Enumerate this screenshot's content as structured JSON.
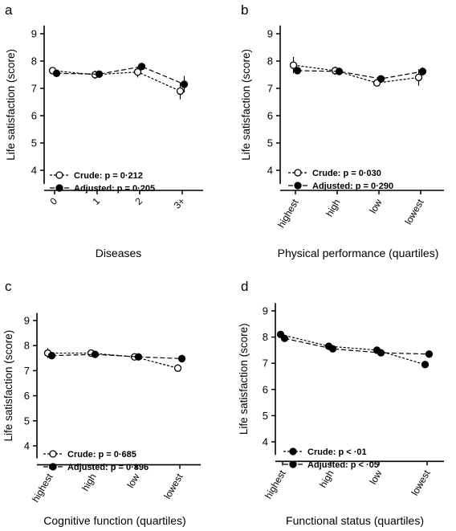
{
  "chart_data": [
    {
      "panel": "a",
      "type": "line",
      "xlabel": "Diseases",
      "ylabel": "Life satisfaction (score)",
      "categories": [
        "0",
        "1",
        "2",
        "3+"
      ],
      "ylim": [
        3.5,
        9.3
      ],
      "yticks": [
        "4",
        "5",
        "6",
        "7",
        "8",
        "9"
      ],
      "series": [
        {
          "name": "Crude",
          "p_value": "p = 0·212",
          "marker": "open-circle",
          "line": "dashed",
          "values": [
            7.65,
            7.5,
            7.6,
            6.9
          ],
          "err": [
            0.12,
            0.15,
            0.2,
            0.3
          ]
        },
        {
          "name": "Adjusted",
          "p_value": "p = 0·205",
          "marker": "filled-circle",
          "line": "dashed",
          "values": [
            7.55,
            7.52,
            7.8,
            7.15
          ],
          "err": [
            0.08,
            0.08,
            0.12,
            0.3
          ]
        }
      ]
    },
    {
      "panel": "b",
      "type": "line",
      "xlabel": "Physical performance (quartiles)",
      "ylabel": "Life satisfaction (score)",
      "categories": [
        "highest",
        "high",
        "low",
        "lowest"
      ],
      "ylim": [
        3.5,
        9.3
      ],
      "yticks": [
        "4",
        "5",
        "6",
        "7",
        "8",
        "9"
      ],
      "series": [
        {
          "name": "Crude",
          "p_value": "p = 0·030",
          "marker": "open-circle",
          "line": "dashed",
          "values": [
            7.85,
            7.65,
            7.2,
            7.4
          ],
          "err": [
            0.3,
            0.15,
            0.12,
            0.3
          ]
        },
        {
          "name": "Adjusted",
          "p_value": "p = 0·290",
          "marker": "filled-circle",
          "line": "dashed",
          "values": [
            7.65,
            7.62,
            7.35,
            7.62
          ],
          "err": [
            0.12,
            0.12,
            0.1,
            0.15
          ]
        }
      ]
    },
    {
      "panel": "c",
      "type": "line",
      "xlabel": "Cognitive function (quartiles)",
      "ylabel": "Life satisfaction (score)",
      "categories": [
        "highest",
        "high",
        "low",
        "lowest"
      ],
      "ylim": [
        3.5,
        9.3
      ],
      "yticks": [
        "4",
        "5",
        "6",
        "7",
        "8",
        "9"
      ],
      "series": [
        {
          "name": "Crude",
          "p_value": "p = 0·685",
          "marker": "open-circle",
          "line": "dashed",
          "values": [
            7.7,
            7.7,
            7.55,
            7.1
          ],
          "err": [
            0.2,
            0.12,
            0.1,
            0.15
          ]
        },
        {
          "name": "Adjusted",
          "p_value": "p = 0·896",
          "marker": "filled-circle",
          "line": "dashed",
          "values": [
            7.6,
            7.65,
            7.55,
            7.48
          ],
          "err": [
            0.1,
            0.1,
            0.08,
            0.15
          ]
        }
      ]
    },
    {
      "panel": "d",
      "type": "line",
      "xlabel": "Functional status (quartiles)",
      "ylabel": "Life satisfaction (score)",
      "categories": [
        "highest",
        "high",
        "low",
        "lowest"
      ],
      "ylim": [
        3.5,
        9.3
      ],
      "yticks": [
        "4",
        "5",
        "6",
        "7",
        "8",
        "9"
      ],
      "series": [
        {
          "name": "Crude",
          "p_value": "p < ·01",
          "marker": "filled-circle",
          "line": "dashed",
          "values": [
            8.1,
            7.65,
            7.5,
            6.95
          ],
          "err": [
            0.12,
            0.1,
            0.12,
            0.1
          ]
        },
        {
          "name": "Adjusted",
          "p_value": "p < ·05",
          "marker": "filled-circle",
          "line": "dashed",
          "values": [
            7.95,
            7.55,
            7.4,
            7.35
          ],
          "err": [
            0.1,
            0.1,
            0.1,
            0.1
          ]
        }
      ]
    }
  ]
}
